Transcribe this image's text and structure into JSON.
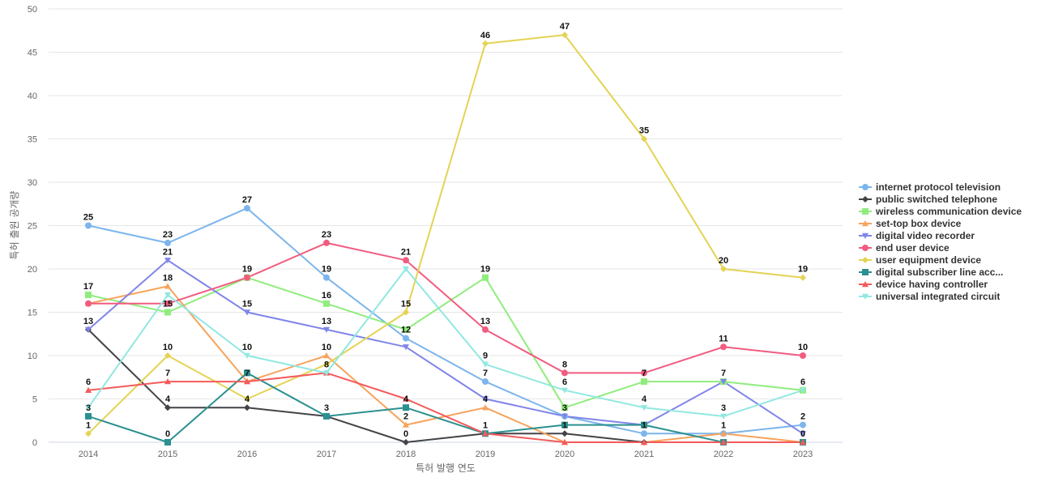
{
  "chart_data": {
    "type": "line",
    "title": "",
    "xlabel": "특허 발행 연도",
    "ylabel": "특허 출원 공개량",
    "categories": [
      "2014",
      "2015",
      "2016",
      "2017",
      "2018",
      "2019",
      "2020",
      "2021",
      "2022",
      "2023"
    ],
    "ylim": [
      0,
      50
    ],
    "yticks": [
      0,
      5,
      10,
      15,
      20,
      25,
      30,
      35,
      40,
      45,
      50
    ],
    "grid": true,
    "legend_position": "right",
    "series": [
      {
        "name": "internet protocol television",
        "color": "#7cb5ec",
        "marker": "circle",
        "values": [
          25,
          23,
          27,
          19,
          12,
          7,
          3,
          1,
          1,
          2
        ],
        "labels": [
          true,
          true,
          true,
          true,
          false,
          true,
          false,
          false,
          false,
          true
        ]
      },
      {
        "name": "public switched telephone",
        "color": "#434348",
        "marker": "diamond",
        "values": [
          13,
          4,
          4,
          3,
          0,
          1,
          1,
          0,
          0,
          0
        ],
        "labels": [
          true,
          true,
          true,
          true,
          true,
          true,
          false,
          false,
          false,
          false
        ]
      },
      {
        "name": "wireless communication device",
        "color": "#90ed7d",
        "marker": "square",
        "values": [
          17,
          15,
          19,
          16,
          13,
          19,
          4,
          7,
          7,
          6
        ],
        "labels": [
          true,
          false,
          true,
          true,
          false,
          true,
          false,
          true,
          true,
          true
        ]
      },
      {
        "name": "set-top box device",
        "color": "#f7a35c",
        "marker": "triangle",
        "values": [
          16,
          18,
          7,
          10,
          2,
          4,
          0,
          0,
          1,
          0
        ],
        "labels": [
          false,
          true,
          false,
          true,
          true,
          true,
          false,
          false,
          true,
          false
        ]
      },
      {
        "name": "digital video recorder",
        "color": "#8085e9",
        "marker": "triangle-down",
        "values": [
          13,
          21,
          15,
          13,
          11,
          5,
          3,
          2,
          7,
          1
        ],
        "labels": [
          false,
          true,
          true,
          true,
          false,
          false,
          false,
          false,
          false,
          false
        ]
      },
      {
        "name": "end user device",
        "color": "#f15c80",
        "marker": "circle",
        "values": [
          16,
          16,
          19,
          23,
          21,
          13,
          8,
          8,
          11,
          10
        ],
        "labels": [
          false,
          false,
          false,
          true,
          true,
          true,
          true,
          true,
          true,
          true
        ]
      },
      {
        "name": "user equipment device",
        "color": "#e4d354",
        "marker": "diamond",
        "values": [
          1,
          10,
          5,
          9,
          15,
          46,
          47,
          35,
          20,
          19
        ],
        "labels": [
          true,
          true,
          true,
          false,
          true,
          true,
          true,
          true,
          true,
          true
        ]
      },
      {
        "name": "digital subscriber line acc...",
        "color": "#2b908f",
        "marker": "square",
        "values": [
          3,
          0,
          8,
          3,
          4,
          1,
          2,
          2,
          0,
          0
        ],
        "labels": [
          true,
          true,
          false,
          true,
          false,
          true,
          true,
          true,
          false,
          true
        ]
      },
      {
        "name": "device having controller",
        "color": "#f45b5b",
        "marker": "triangle",
        "values": [
          6,
          7,
          7,
          8,
          5,
          1,
          0,
          0,
          0,
          0
        ],
        "labels": [
          true,
          true,
          false,
          true,
          false,
          false,
          false,
          false,
          false,
          false
        ]
      },
      {
        "name": "universal integrated circuit",
        "color": "#91e8e1",
        "marker": "triangle-down",
        "values": [
          4,
          17,
          10,
          8,
          20,
          9,
          6,
          4,
          3,
          6
        ],
        "labels": [
          false,
          false,
          true,
          false,
          false,
          true,
          true,
          true,
          true,
          false
        ]
      }
    ],
    "data_labels": [
      {
        "category": "2014",
        "text": "25",
        "value": 25
      },
      {
        "category": "2014",
        "text": "17",
        "value": 17
      },
      {
        "category": "2014",
        "text": "13",
        "value": 13
      },
      {
        "category": "2014",
        "text": "6",
        "value": 6
      },
      {
        "category": "2014",
        "text": "3",
        "value": 3
      },
      {
        "category": "2014",
        "text": "1",
        "value": 1
      },
      {
        "category": "2015",
        "text": "23",
        "value": 23
      },
      {
        "category": "2015",
        "text": "21",
        "value": 21
      },
      {
        "category": "2015",
        "text": "18",
        "value": 18
      },
      {
        "category": "2015",
        "text": "15",
        "value": 15
      },
      {
        "category": "2015",
        "text": "10",
        "value": 10
      },
      {
        "category": "2015",
        "text": "7",
        "value": 7
      },
      {
        "category": "2015",
        "text": "4",
        "value": 4
      },
      {
        "category": "2015",
        "text": "0",
        "value": 0
      },
      {
        "category": "2016",
        "text": "27",
        "value": 27
      },
      {
        "category": "2016",
        "text": "19",
        "value": 19
      },
      {
        "category": "2016",
        "text": "15",
        "value": 15
      },
      {
        "category": "2016",
        "text": "10",
        "value": 10
      },
      {
        "category": "2016",
        "text": "7",
        "value": 7
      },
      {
        "category": "2016",
        "text": "4",
        "value": 4
      },
      {
        "category": "2017",
        "text": "23",
        "value": 23
      },
      {
        "category": "2017",
        "text": "19",
        "value": 19
      },
      {
        "category": "2017",
        "text": "16",
        "value": 16
      },
      {
        "category": "2017",
        "text": "13",
        "value": 13
      },
      {
        "category": "2017",
        "text": "10",
        "value": 10
      },
      {
        "category": "2017",
        "text": "8",
        "value": 8
      },
      {
        "category": "2017",
        "text": "3",
        "value": 3
      },
      {
        "category": "2018",
        "text": "21",
        "value": 21
      },
      {
        "category": "2018",
        "text": "15",
        "value": 15
      },
      {
        "category": "2018",
        "text": "12",
        "value": 12
      },
      {
        "category": "2018",
        "text": "4",
        "value": 4
      },
      {
        "category": "2018",
        "text": "2",
        "value": 2
      },
      {
        "category": "2018",
        "text": "0",
        "value": 0
      },
      {
        "category": "2019",
        "text": "46",
        "value": 46
      },
      {
        "category": "2019",
        "text": "19",
        "value": 19
      },
      {
        "category": "2019",
        "text": "13",
        "value": 13
      },
      {
        "category": "2019",
        "text": "9",
        "value": 9
      },
      {
        "category": "2019",
        "text": "7",
        "value": 7
      },
      {
        "category": "2019",
        "text": "4",
        "value": 4
      },
      {
        "category": "2019",
        "text": "1",
        "value": 1
      },
      {
        "category": "2020",
        "text": "47",
        "value": 47
      },
      {
        "category": "2020",
        "text": "8",
        "value": 8
      },
      {
        "category": "2020",
        "text": "6",
        "value": 6
      },
      {
        "category": "2020",
        "text": "3",
        "value": 3
      },
      {
        "category": "2020",
        "text": "1",
        "value": 1
      },
      {
        "category": "2021",
        "text": "35",
        "value": 35
      },
      {
        "category": "2021",
        "text": "7",
        "value": 7
      },
      {
        "category": "2021",
        "text": "4",
        "value": 4
      },
      {
        "category": "2021",
        "text": "1",
        "value": 1
      },
      {
        "category": "2022",
        "text": "20",
        "value": 20
      },
      {
        "category": "2022",
        "text": "11",
        "value": 11
      },
      {
        "category": "2022",
        "text": "7",
        "value": 7
      },
      {
        "category": "2022",
        "text": "3",
        "value": 3
      },
      {
        "category": "2022",
        "text": "1",
        "value": 1
      },
      {
        "category": "2023",
        "text": "19",
        "value": 19
      },
      {
        "category": "2023",
        "text": "10",
        "value": 10
      },
      {
        "category": "2023",
        "text": "6",
        "value": 6
      },
      {
        "category": "2023",
        "text": "2",
        "value": 2
      },
      {
        "category": "2023",
        "text": "0",
        "value": 0
      }
    ]
  }
}
